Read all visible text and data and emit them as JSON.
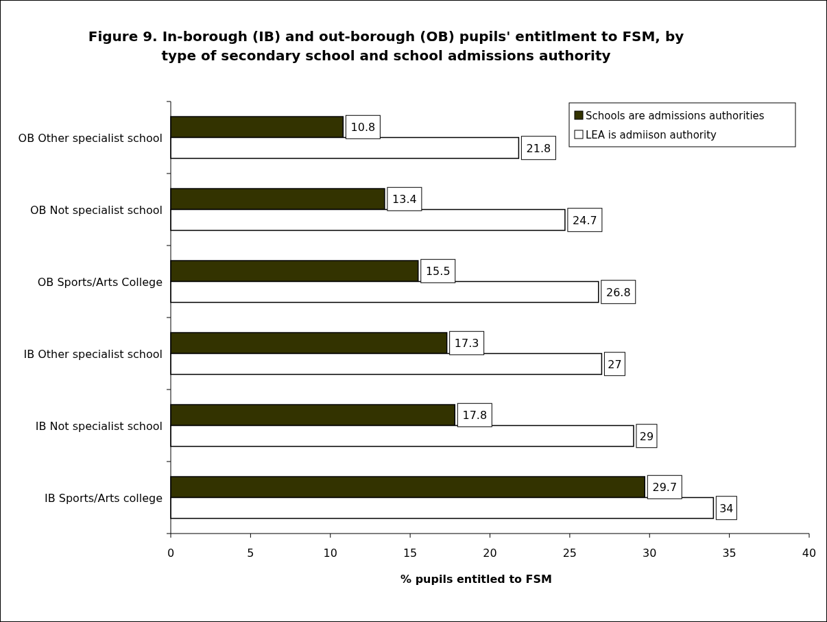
{
  "chart_data": {
    "type": "bar",
    "orientation": "horizontal",
    "title": "Figure 9. In-borough (IB) and out-borough (OB) pupils' entitlment to FSM, by type of secondary school and school admissions authority",
    "xlabel": "% pupils entitled to FSM",
    "categories": [
      "OB Other specialist school",
      "OB Not specialist school",
      "OB Sports/Arts College",
      "IB Other specialist school",
      "IB Not specialist school",
      "IB Sports/Arts college"
    ],
    "series": [
      {
        "name": "Schools are admissions authorities",
        "color": "#333300",
        "values": [
          10.8,
          13.4,
          15.5,
          17.3,
          17.8,
          29.7
        ]
      },
      {
        "name": "LEA is admiison authority",
        "color": "#ffffff",
        "values": [
          21.8,
          24.7,
          26.8,
          27,
          29,
          34
        ]
      }
    ],
    "xlim": [
      0,
      40
    ],
    "xticks": [
      0,
      5,
      10,
      15,
      20,
      25,
      30,
      35,
      40
    ],
    "data_labels": true,
    "legend": "top right",
    "grid": false
  }
}
